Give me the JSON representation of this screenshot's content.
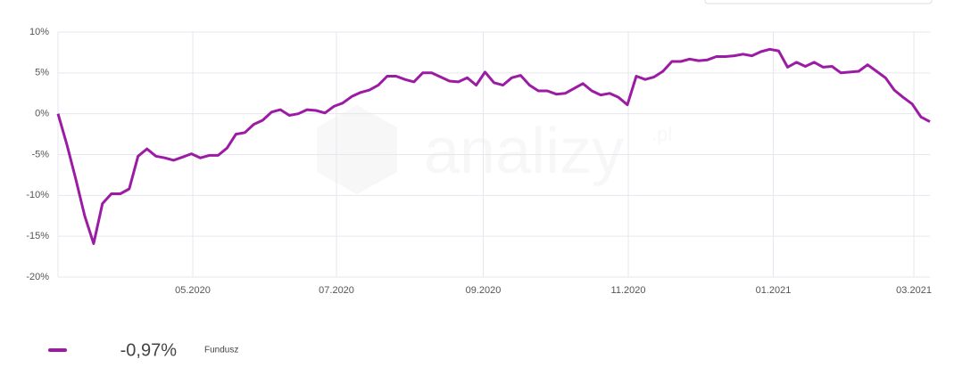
{
  "chart_data": {
    "type": "line",
    "watermark": [
      "analizy",
      ".pl"
    ],
    "series": [
      {
        "name": "Fundusz",
        "color": "#9c1ba5",
        "values": [
          0,
          -3.8,
          -8,
          -12.5,
          -15.9,
          -11,
          -9.8,
          -9.8,
          -9.2,
          -5.2,
          -4.3,
          -5.2,
          -5.4,
          -5.7,
          -5.3,
          -4.9,
          -5.4,
          -5.1,
          -5.1,
          -4.2,
          -2.5,
          -2.3,
          -1.3,
          -0.8,
          0.2,
          0.5,
          -0.2,
          0,
          0.5,
          0.4,
          0.1,
          0.9,
          1.3,
          2.1,
          2.6,
          2.9,
          3.5,
          4.6,
          4.6,
          4.2,
          3.9,
          5,
          5,
          4.5,
          4,
          3.9,
          4.4,
          3.5,
          5.1,
          3.8,
          3.5,
          4.4,
          4.7,
          3.5,
          2.8,
          2.8,
          2.4,
          2.5,
          3.1,
          3.7,
          2.8,
          2.3,
          2.5,
          2,
          1.1,
          4.6,
          4.2,
          4.5,
          5.2,
          6.4,
          6.4,
          6.7,
          6.5,
          6.6,
          7,
          7,
          7.1,
          7.3,
          7.1,
          7.6,
          7.9,
          7.7,
          5.7,
          6.3,
          5.8,
          6.3,
          5.7,
          5.8,
          5,
          5.1,
          5.2,
          6,
          5.2,
          4.4,
          2.9,
          2,
          1.2,
          -0.4,
          -0.97
        ],
        "value_labels": [
          null,
          null,
          null,
          null,
          null,
          null,
          null,
          null,
          null,
          null,
          null,
          null,
          null,
          null,
          null,
          null,
          null,
          null,
          null,
          null,
          null,
          null,
          null,
          null,
          null,
          null,
          null,
          null,
          null,
          null,
          null,
          null,
          null,
          null,
          null,
          null,
          null,
          null,
          null,
          null,
          null,
          null,
          null,
          null,
          null,
          null,
          null,
          null,
          null,
          null,
          null,
          null,
          null,
          null,
          null,
          null,
          null,
          null,
          null,
          null,
          null,
          null,
          null,
          null,
          null,
          null,
          null,
          null,
          null,
          null,
          null,
          null,
          null,
          null,
          null,
          null,
          null,
          null,
          null,
          null,
          null,
          null,
          null,
          null,
          null,
          null,
          null,
          null,
          null,
          null,
          null,
          null,
          null,
          null,
          null,
          null,
          null,
          null,
          "-0,97%"
        ]
      }
    ],
    "xlim": [
      0,
      98
    ],
    "xticks": [
      {
        "value": 15.15,
        "label": "05.2020"
      },
      {
        "value": 31.3,
        "label": "07.2020"
      },
      {
        "value": 47.8,
        "label": "09.2020"
      },
      {
        "value": 64.1,
        "label": "11.2020"
      },
      {
        "value": 80.4,
        "label": "01.2021"
      },
      {
        "value": 96.2,
        "label": "03.2021"
      }
    ],
    "ylim": [
      -20,
      10
    ],
    "yticks": [
      {
        "value": -20,
        "label": "-20%"
      },
      {
        "value": -15,
        "label": "-15%"
      },
      {
        "value": -10,
        "label": "-10%"
      },
      {
        "value": -5,
        "label": "-5%"
      },
      {
        "value": 0,
        "label": "0%"
      },
      {
        "value": 5,
        "label": "5%"
      },
      {
        "value": 10,
        "label": "10%"
      }
    ],
    "grid": true
  }
}
